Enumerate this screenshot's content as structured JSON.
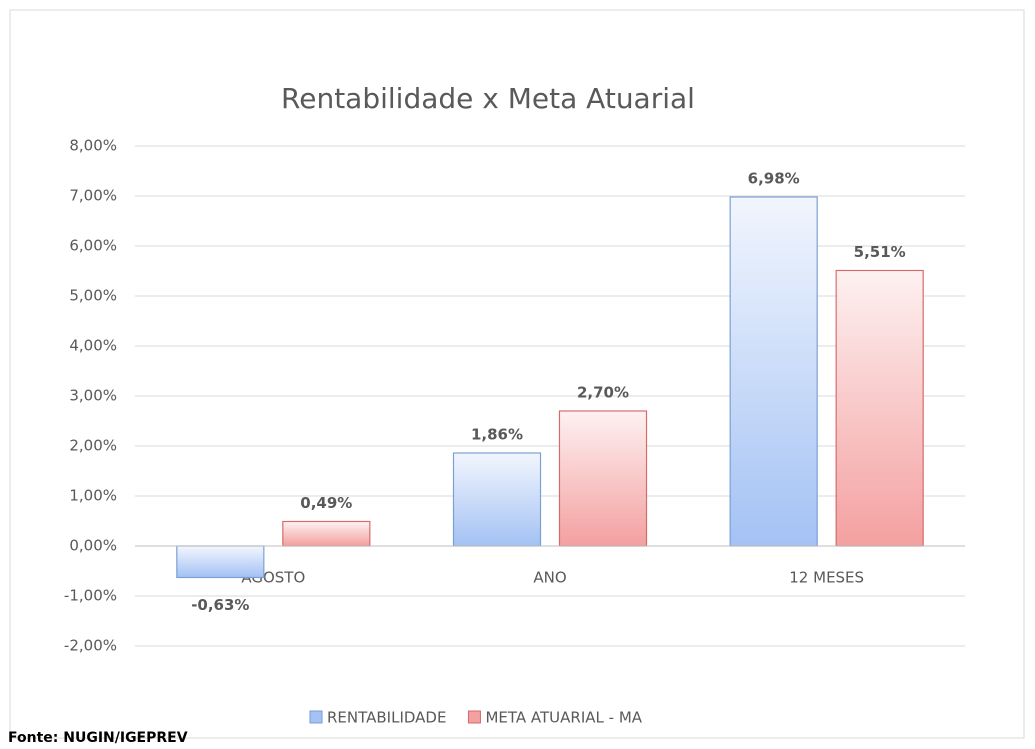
{
  "chart_data": {
    "type": "bar",
    "title": "Rentabilidade x Meta Atuarial",
    "categories": [
      "AGOSTO",
      "ANO",
      "12 MESES"
    ],
    "series": [
      {
        "name": "RENTABILIDADE",
        "color": "#a4c2f4",
        "values": [
          -0.63,
          1.86,
          6.98
        ],
        "value_labels": [
          "-0,63%",
          "1,86%",
          "6,98%"
        ]
      },
      {
        "name": "META ATUARIAL - MA",
        "color": "#f4a0a0",
        "values": [
          0.49,
          2.7,
          5.51
        ],
        "value_labels": [
          "0,49%",
          "2,70%",
          "5,51%"
        ]
      }
    ],
    "ylim": [
      -2,
      8
    ],
    "yticks": [
      {
        "value": -2,
        "label": "-2,00%"
      },
      {
        "value": -1,
        "label": "-1,00%"
      },
      {
        "value": 0,
        "label": "0,00%"
      },
      {
        "value": 1,
        "label": "1,00%"
      },
      {
        "value": 2,
        "label": "2,00%"
      },
      {
        "value": 3,
        "label": "3,00%"
      },
      {
        "value": 4,
        "label": "4,00%"
      },
      {
        "value": 5,
        "label": "5,00%"
      },
      {
        "value": 6,
        "label": "6,00%"
      },
      {
        "value": 7,
        "label": "7,00%"
      },
      {
        "value": 8,
        "label": "8,00%"
      }
    ],
    "grid": true,
    "legend": "bottom",
    "source": "Fonte: NUGIN/IGEPREV"
  }
}
